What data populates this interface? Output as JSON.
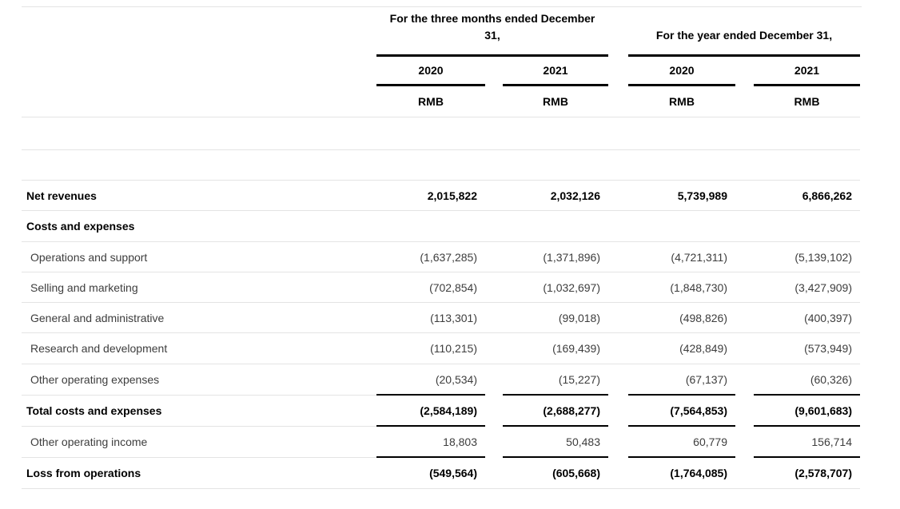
{
  "table": {
    "header": {
      "group1": "For the three months ended December 31,",
      "group2": "For the year ended December 31,",
      "years": [
        "2020",
        "2021",
        "2020",
        "2021"
      ],
      "currency": [
        "RMB",
        "RMB",
        "RMB",
        "RMB"
      ]
    },
    "rows": [
      {
        "label": "Net revenues",
        "values": [
          "2,015,822",
          "2,032,126",
          "5,739,989",
          "6,866,262"
        ]
      },
      {
        "label": "Costs and expenses",
        "values": [
          "",
          "",
          "",
          ""
        ]
      },
      {
        "label": "Operations and support",
        "values": [
          "(1,637,285)",
          "(1,371,896)",
          "(4,721,311)",
          "(5,139,102)"
        ]
      },
      {
        "label": "Selling and marketing",
        "values": [
          "(702,854)",
          "(1,032,697)",
          "(1,848,730)",
          "(3,427,909)"
        ]
      },
      {
        "label": "General and administrative",
        "values": [
          "(113,301)",
          "(99,018)",
          "(498,826)",
          "(400,397)"
        ]
      },
      {
        "label": "Research and development",
        "values": [
          "(110,215)",
          "(169,439)",
          "(428,849)",
          "(573,949)"
        ]
      },
      {
        "label": "Other operating expenses",
        "values": [
          "(20,534)",
          "(15,227)",
          "(67,137)",
          "(60,326)"
        ]
      },
      {
        "label": "Total costs and expenses",
        "values": [
          "(2,584,189)",
          "(2,688,277)",
          "(7,564,853)",
          "(9,601,683)"
        ]
      },
      {
        "label": "Other operating income",
        "values": [
          "18,803",
          "50,483",
          "60,779",
          "156,714"
        ]
      },
      {
        "label": "Loss from operations",
        "values": [
          "(549,564)",
          "(605,668)",
          "(1,764,085)",
          "(2,578,707)"
        ]
      }
    ]
  }
}
